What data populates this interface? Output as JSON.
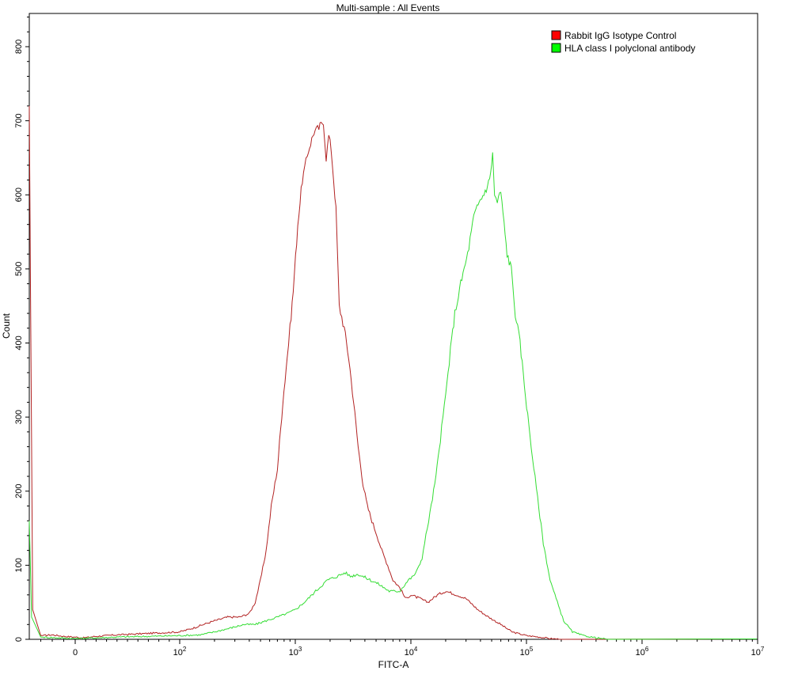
{
  "chart_data": {
    "type": "line",
    "title": "Multi-sample : All Events",
    "xlabel": "FITC-A",
    "ylabel": "Count",
    "x_scale": "biexponential",
    "xlim": [
      -40,
      10000000
    ],
    "ylim": [
      0,
      850
    ],
    "x_ticks": [
      {
        "value": 0,
        "label": "0"
      },
      {
        "value": 100,
        "label": "10",
        "exp": "2"
      },
      {
        "value": 1000,
        "label": "10",
        "exp": "3"
      },
      {
        "value": 10000,
        "label": "10",
        "exp": "4"
      },
      {
        "value": 100000,
        "label": "10",
        "exp": "5"
      },
      {
        "value": 1000000,
        "label": "10",
        "exp": "6"
      },
      {
        "value": 10000000,
        "label": "10",
        "exp": "7"
      }
    ],
    "y_ticks": [
      0,
      100,
      200,
      300,
      400,
      500,
      600,
      700,
      800
    ],
    "grid": false,
    "legend_position": "top-right",
    "series": [
      {
        "name": "Rabbit IgG Isotype Control",
        "color": "#b22222",
        "legend_color": "#ff0000",
        "points": [
          [
            -40,
            720
          ],
          [
            -37,
            40
          ],
          [
            -30,
            5
          ],
          [
            -20,
            6
          ],
          [
            -10,
            4
          ],
          [
            0,
            3
          ],
          [
            8,
            2
          ],
          [
            20,
            4
          ],
          [
            40,
            6
          ],
          [
            70,
            8
          ],
          [
            100,
            10
          ],
          [
            130,
            15
          ],
          [
            160,
            20
          ],
          [
            200,
            25
          ],
          [
            260,
            30
          ],
          [
            330,
            30
          ],
          [
            400,
            35
          ],
          [
            450,
            50
          ],
          [
            500,
            80
          ],
          [
            560,
            120
          ],
          [
            620,
            180
          ],
          [
            700,
            230
          ],
          [
            780,
            320
          ],
          [
            850,
            380
          ],
          [
            900,
            420
          ],
          [
            960,
            470
          ],
          [
            1050,
            560
          ],
          [
            1150,
            620
          ],
          [
            1300,
            660
          ],
          [
            1450,
            685
          ],
          [
            1600,
            690
          ],
          [
            1750,
            700
          ],
          [
            1850,
            650
          ],
          [
            1950,
            680
          ],
          [
            2050,
            660
          ],
          [
            2150,
            620
          ],
          [
            2250,
            580
          ],
          [
            2400,
            450
          ],
          [
            2650,
            420
          ],
          [
            2900,
            380
          ],
          [
            3200,
            320
          ],
          [
            3500,
            260
          ],
          [
            3850,
            210
          ],
          [
            4200,
            180
          ],
          [
            4600,
            160
          ],
          [
            5100,
            140
          ],
          [
            5600,
            120
          ],
          [
            6300,
            100
          ],
          [
            7000,
            80
          ],
          [
            8000,
            70
          ],
          [
            9000,
            55
          ],
          [
            10000,
            60
          ],
          [
            12000,
            55
          ],
          [
            14000,
            50
          ],
          [
            17000,
            60
          ],
          [
            20000,
            65
          ],
          [
            25000,
            60
          ],
          [
            30000,
            55
          ],
          [
            38000,
            40
          ],
          [
            47000,
            30
          ],
          [
            60000,
            20
          ],
          [
            75000,
            10
          ],
          [
            100000,
            5
          ],
          [
            130000,
            3
          ],
          [
            160000,
            1
          ],
          [
            200000,
            0
          ]
        ]
      },
      {
        "name": "HLA class I polyclonal antibody",
        "color": "#33dd33",
        "legend_color": "#00ff00",
        "points": [
          [
            -40,
            160
          ],
          [
            -38,
            30
          ],
          [
            -30,
            3
          ],
          [
            -15,
            2
          ],
          [
            0,
            1
          ],
          [
            20,
            2
          ],
          [
            40,
            3
          ],
          [
            70,
            4
          ],
          [
            100,
            5
          ],
          [
            150,
            6
          ],
          [
            200,
            10
          ],
          [
            270,
            15
          ],
          [
            360,
            20
          ],
          [
            450,
            20
          ],
          [
            560,
            25
          ],
          [
            700,
            30
          ],
          [
            850,
            35
          ],
          [
            1000,
            40
          ],
          [
            1200,
            50
          ],
          [
            1500,
            65
          ],
          [
            1900,
            80
          ],
          [
            2300,
            85
          ],
          [
            2700,
            90
          ],
          [
            3000,
            85
          ],
          [
            3500,
            88
          ],
          [
            4200,
            82
          ],
          [
            5200,
            75
          ],
          [
            6500,
            65
          ],
          [
            8000,
            65
          ],
          [
            9500,
            80
          ],
          [
            10500,
            85
          ],
          [
            11500,
            95
          ],
          [
            12500,
            110
          ],
          [
            13500,
            140
          ],
          [
            15000,
            180
          ],
          [
            16500,
            220
          ],
          [
            18000,
            270
          ],
          [
            20000,
            330
          ],
          [
            22000,
            390
          ],
          [
            24000,
            440
          ],
          [
            27000,
            480
          ],
          [
            31000,
            520
          ],
          [
            35000,
            570
          ],
          [
            39000,
            590
          ],
          [
            44000,
            605
          ],
          [
            48000,
            620
          ],
          [
            51000,
            655
          ],
          [
            53000,
            600
          ],
          [
            56000,
            590
          ],
          [
            60000,
            605
          ],
          [
            64000,
            560
          ],
          [
            68000,
            520
          ],
          [
            74000,
            500
          ],
          [
            80000,
            440
          ],
          [
            88000,
            400
          ],
          [
            98000,
            330
          ],
          [
            110000,
            260
          ],
          [
            125000,
            190
          ],
          [
            140000,
            130
          ],
          [
            160000,
            80
          ],
          [
            185000,
            50
          ],
          [
            210000,
            25
          ],
          [
            250000,
            10
          ],
          [
            310000,
            5
          ],
          [
            400000,
            2
          ],
          [
            500000,
            0
          ]
        ]
      }
    ]
  }
}
